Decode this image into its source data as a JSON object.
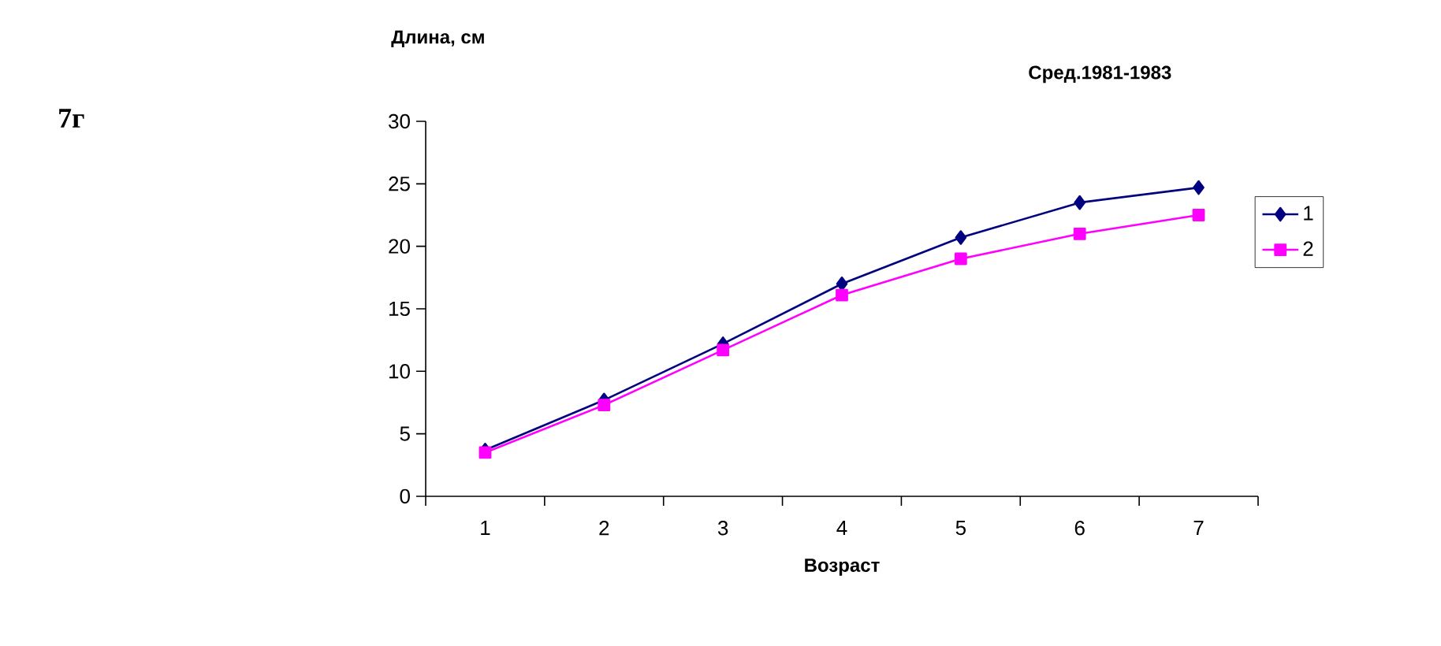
{
  "chart_data": {
    "type": "line",
    "title": "Сред.1981-1983",
    "xlabel": "Возраст",
    "ylabel": "Длина, см",
    "annotations": [
      "7г"
    ],
    "categories": [
      "1",
      "2",
      "3",
      "4",
      "5",
      "6",
      "7"
    ],
    "series": [
      {
        "name": "1",
        "color": "#000080",
        "marker": "diamond",
        "values": [
          3.7,
          7.7,
          12.2,
          17.0,
          20.7,
          23.5,
          24.7
        ]
      },
      {
        "name": "2",
        "color": "#ff00ff",
        "marker": "square",
        "values": [
          3.5,
          7.3,
          11.7,
          16.1,
          19.0,
          21.0,
          22.5
        ]
      }
    ],
    "ylim": [
      0,
      30
    ],
    "yticks": [
      0,
      5,
      10,
      15,
      20,
      25,
      30
    ],
    "grid": false,
    "legend": "right",
    "line_style": "solid"
  }
}
